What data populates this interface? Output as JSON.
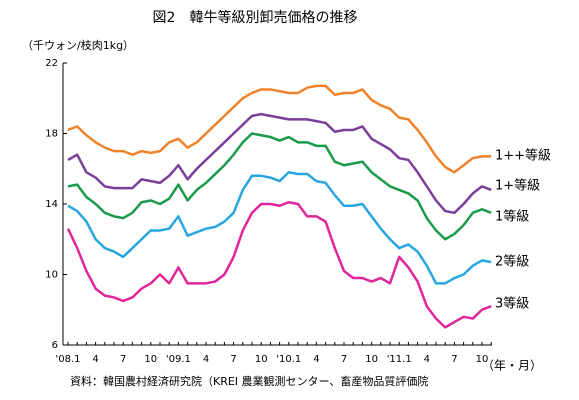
{
  "chart_data": {
    "type": "line",
    "title": "図2　韓牛等級別卸売価格の推移",
    "y_axis_label": "（千ウォン/枝肉1kg）",
    "x_axis_label": "（年・月）",
    "source": "資料：韓国農村経済研究院（KREI 農業観測センター、畜産物品質評価院",
    "categories": [
      "'08.1",
      null,
      null,
      "4",
      null,
      null,
      "7",
      null,
      null,
      "10",
      null,
      null,
      "'09.1",
      null,
      null,
      "4",
      null,
      null,
      "7",
      null,
      null,
      "10",
      null,
      null,
      "'10.1",
      null,
      null,
      "4",
      null,
      null,
      "7",
      null,
      null,
      "10",
      null,
      null,
      "'11.1",
      null,
      null,
      "4",
      null,
      null,
      "7",
      null,
      null,
      "10",
      null
    ],
    "ylim": [
      6,
      22
    ],
    "yticks": [
      6,
      10,
      14,
      18,
      22
    ],
    "series": [
      {
        "name": "1++等級",
        "color": "#f0822a",
        "values": [
          18.2,
          18.4,
          17.9,
          17.5,
          17.2,
          17.0,
          17.0,
          16.8,
          17.0,
          16.9,
          17.0,
          17.5,
          17.7,
          17.2,
          17.5,
          18.0,
          18.5,
          19.0,
          19.5,
          20.0,
          20.3,
          20.5,
          20.5,
          20.4,
          20.3,
          20.3,
          20.6,
          20.7,
          20.7,
          20.2,
          20.3,
          20.3,
          20.5,
          19.9,
          19.6,
          19.4,
          18.9,
          18.8,
          18.2,
          17.5,
          16.7,
          16.1,
          15.8,
          16.2,
          16.6,
          16.7,
          16.7
        ]
      },
      {
        "name": "1+等級",
        "color": "#7b3f99",
        "values": [
          16.5,
          16.8,
          15.8,
          15.5,
          15.0,
          14.9,
          14.9,
          14.9,
          15.4,
          15.3,
          15.2,
          15.6,
          16.2,
          15.4,
          16.0,
          16.5,
          17.0,
          17.5,
          18.0,
          18.5,
          19.0,
          19.1,
          19.0,
          18.9,
          18.8,
          18.8,
          18.8,
          18.7,
          18.6,
          18.1,
          18.2,
          18.2,
          18.4,
          17.7,
          17.4,
          17.1,
          16.6,
          16.5,
          15.8,
          15.0,
          14.2,
          13.6,
          13.5,
          14.0,
          14.6,
          15.0,
          14.8
        ]
      },
      {
        "name": "1等級",
        "color": "#1a9a4a",
        "values": [
          15.0,
          15.1,
          14.4,
          14.0,
          13.5,
          13.3,
          13.2,
          13.5,
          14.1,
          14.2,
          14.0,
          14.3,
          15.1,
          14.2,
          14.8,
          15.2,
          15.7,
          16.2,
          16.8,
          17.5,
          18.0,
          17.9,
          17.8,
          17.6,
          17.8,
          17.5,
          17.5,
          17.3,
          17.3,
          16.4,
          16.2,
          16.3,
          16.4,
          15.8,
          15.4,
          15.0,
          14.8,
          14.6,
          14.2,
          13.2,
          12.5,
          12.0,
          12.3,
          12.8,
          13.5,
          13.7,
          13.5
        ]
      },
      {
        "name": "2等級",
        "color": "#27a6e0",
        "values": [
          13.9,
          13.6,
          13.0,
          12.0,
          11.5,
          11.3,
          11.0,
          11.5,
          12.0,
          12.5,
          12.5,
          12.6,
          13.3,
          12.2,
          12.4,
          12.6,
          12.7,
          13.0,
          13.5,
          14.8,
          15.6,
          15.6,
          15.5,
          15.3,
          15.8,
          15.7,
          15.7,
          15.3,
          15.2,
          14.5,
          13.9,
          13.9,
          14.0,
          13.3,
          12.6,
          12.0,
          11.5,
          11.7,
          11.3,
          10.5,
          9.5,
          9.5,
          9.8,
          10.0,
          10.5,
          10.8,
          10.7
        ]
      },
      {
        "name": "3等級",
        "color": "#e0269a",
        "values": [
          12.6,
          11.5,
          10.2,
          9.2,
          8.8,
          8.7,
          8.5,
          8.7,
          9.2,
          9.5,
          10.0,
          9.5,
          10.4,
          9.5,
          9.5,
          9.5,
          9.6,
          10.0,
          11.0,
          12.5,
          13.5,
          14.0,
          14.0,
          13.9,
          14.1,
          14.0,
          13.3,
          13.3,
          13.0,
          11.5,
          10.2,
          9.8,
          9.8,
          9.6,
          9.8,
          9.5,
          11.0,
          10.4,
          9.6,
          8.2,
          7.5,
          7.0,
          7.3,
          7.6,
          7.5,
          8.0,
          8.2
        ]
      }
    ]
  }
}
